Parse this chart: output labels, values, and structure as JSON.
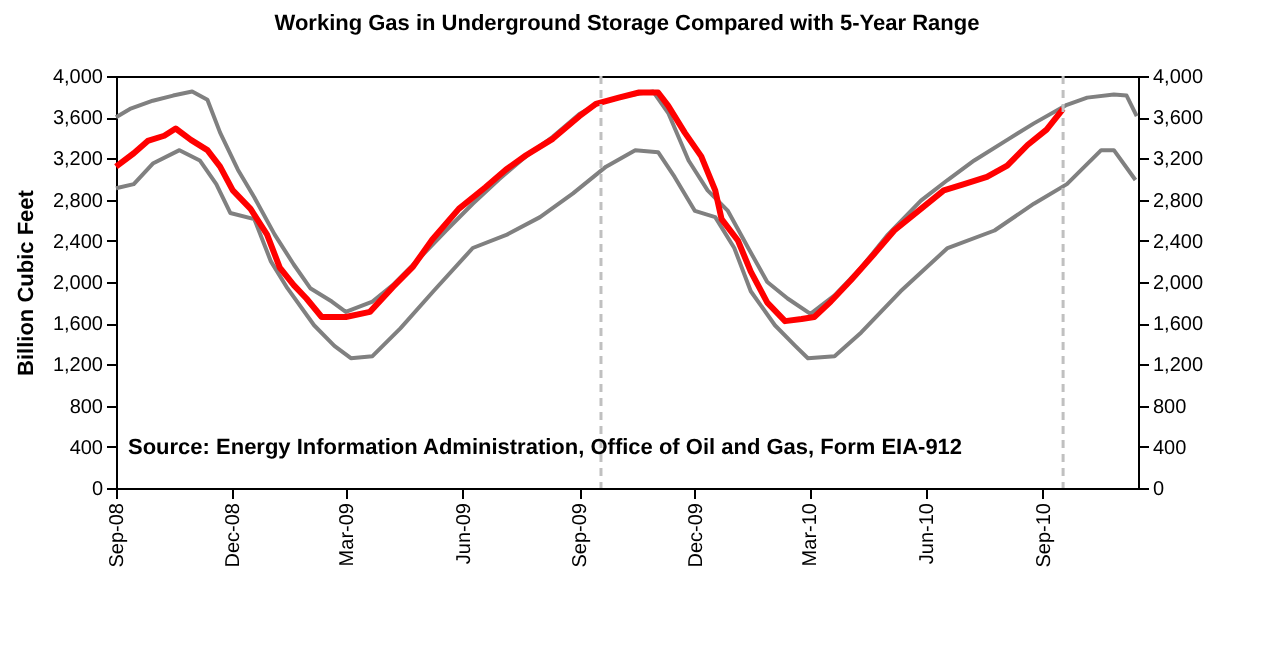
{
  "chart_data": {
    "type": "line",
    "title": "Working Gas in Underground Storage Compared with 5-Year Range",
    "ylabel": "Billion Cubic Feet",
    "annotations": [
      "Source:  Energy Information Administration, Office of Oil and Gas, Form EIA-912"
    ],
    "xlim": [
      "2008-09-01",
      "2010-11-15"
    ],
    "xticks": [
      {
        "value": "2008-09-01",
        "label": "Sep-08"
      },
      {
        "value": "2008-12-01",
        "label": "Dec-08"
      },
      {
        "value": "2009-03-01",
        "label": "Mar-09"
      },
      {
        "value": "2009-06-01",
        "label": "Jun-09"
      },
      {
        "value": "2009-09-01",
        "label": "Sep-09"
      },
      {
        "value": "2009-12-01",
        "label": "Dec-09"
      },
      {
        "value": "2010-03-01",
        "label": "Mar-10"
      },
      {
        "value": "2010-06-01",
        "label": "Jun-10"
      },
      {
        "value": "2010-09-01",
        "label": "Sep-10"
      }
    ],
    "ylim": [
      0,
      4000
    ],
    "yticks": [
      0,
      400,
      800,
      {
        "value": 1200,
        "label": "1,200"
      },
      {
        "value": 1600,
        "label": "1,600"
      },
      {
        "value": 2000,
        "label": "2,000"
      },
      {
        "value": 2400,
        "label": "2,400"
      },
      {
        "value": 2800,
        "label": "2,800"
      },
      {
        "value": 3200,
        "label": "3,200"
      },
      {
        "value": 3600,
        "label": "3,600"
      },
      {
        "value": 4000,
        "label": "4,000"
      }
    ],
    "y2lim": [
      0,
      4000
    ],
    "y2ticks": [
      0,
      400,
      800,
      {
        "value": 1200,
        "label": "1,200"
      },
      {
        "value": 1600,
        "label": "1,600"
      },
      {
        "value": 2000,
        "label": "2,000"
      },
      {
        "value": 2400,
        "label": "2,400"
      },
      {
        "value": 2800,
        "label": "2,800"
      },
      {
        "value": 3200,
        "label": "3,200"
      },
      {
        "value": 3600,
        "label": "3,600"
      },
      {
        "value": 4000,
        "label": "4,000"
      }
    ],
    "grid": false,
    "legend": false,
    "marker": "none",
    "line_style": "solid",
    "ref_lines": [
      {
        "axis": "x",
        "value": "2009-09-18",
        "color": "#c0c0c0",
        "line_style": "dashed"
      },
      {
        "axis": "x",
        "value": "2010-09-17",
        "color": "#c0c0c0",
        "line_style": "dashed"
      }
    ],
    "series": [
      {
        "color": "#808080",
        "x": [
          "2008-09-01",
          "2008-09-12",
          "2008-09-30",
          "2008-10-16",
          "2008-10-31",
          "2008-11-12",
          "2008-11-22",
          "2008-12-06",
          "2008-12-19",
          "2009-01-04",
          "2009-01-19",
          "2009-02-01",
          "2009-02-18",
          "2009-03-01",
          "2009-03-22",
          "2009-04-07",
          "2009-04-28",
          "2009-05-19",
          "2009-06-09",
          "2009-06-30",
          "2009-07-21",
          "2009-08-11",
          "2009-09-01",
          "2009-09-17",
          "2009-10-08",
          "2009-10-29",
          "2009-11-10",
          "2009-11-26",
          "2009-12-11",
          "2009-12-27",
          "2010-01-12",
          "2010-01-27",
          "2010-02-12",
          "2010-03-02",
          "2010-03-21",
          "2010-04-11",
          "2010-05-02",
          "2010-05-28",
          "2010-06-18",
          "2010-07-09",
          "2010-08-04",
          "2010-08-25",
          "2010-09-20",
          "2010-10-06",
          "2010-10-27",
          "2010-11-06",
          "2010-11-14"
        ],
        "values": [
          3600,
          3680,
          3760,
          3810,
          3850,
          3770,
          3450,
          3090,
          2820,
          2460,
          2170,
          1940,
          1810,
          1710,
          1810,
          1970,
          2230,
          2500,
          2760,
          3000,
          3220,
          3410,
          3630,
          3740,
          3810,
          3850,
          3640,
          3180,
          2890,
          2690,
          2330,
          2000,
          1840,
          1690,
          1870,
          2140,
          2460,
          2790,
          2990,
          3180,
          3380,
          3540,
          3720,
          3790,
          3820,
          3810,
          3610
        ]
      },
      {
        "color": "#808080",
        "x": [
          "2008-09-01",
          "2008-09-15",
          "2008-09-30",
          "2008-10-21",
          "2008-11-06",
          "2008-11-19",
          "2008-11-30",
          "2008-12-19",
          "2009-01-01",
          "2009-01-14",
          "2009-02-04",
          "2009-02-20",
          "2009-03-05",
          "2009-03-22",
          "2009-04-13",
          "2009-05-09",
          "2009-06-09",
          "2009-07-06",
          "2009-08-01",
          "2009-08-27",
          "2009-09-22",
          "2009-10-15",
          "2009-11-02",
          "2009-11-15",
          "2009-12-01",
          "2009-12-17",
          "2010-01-01",
          "2010-01-14",
          "2010-02-02",
          "2010-02-18",
          "2010-02-28",
          "2010-03-21",
          "2010-04-11",
          "2010-05-12",
          "2010-06-18",
          "2010-07-25",
          "2010-08-25",
          "2010-09-20",
          "2010-10-17",
          "2010-10-27",
          "2010-11-13"
        ],
        "values": [
          2910,
          2950,
          3150,
          3280,
          3180,
          2950,
          2670,
          2610,
          2200,
          1940,
          1580,
          1380,
          1260,
          1280,
          1550,
          1910,
          2330,
          2460,
          2630,
          2860,
          3120,
          3280,
          3260,
          3020,
          2690,
          2630,
          2330,
          1910,
          1580,
          1380,
          1260,
          1280,
          1510,
          1910,
          2330,
          2500,
          2760,
          2950,
          3280,
          3280,
          2990
        ]
      },
      {
        "color": "#ff0000",
        "x": [
          "2008-09-01",
          "2008-09-15",
          "2008-09-26",
          "2008-10-09",
          "2008-10-18",
          "2008-10-30",
          "2008-11-12",
          "2008-11-22",
          "2008-12-02",
          "2008-12-16",
          "2008-12-29",
          "2009-01-08",
          "2009-01-19",
          "2009-01-29",
          "2009-02-10",
          "2009-03-01",
          "2009-03-20",
          "2009-04-07",
          "2009-04-23",
          "2009-05-08",
          "2009-05-29",
          "2009-06-19",
          "2009-07-05",
          "2009-07-21",
          "2009-08-11",
          "2009-09-01",
          "2009-09-14",
          "2009-10-02",
          "2009-10-18",
          "2009-11-02",
          "2009-11-10",
          "2009-11-23",
          "2009-12-06",
          "2009-12-17",
          "2009-12-22",
          "2010-01-04",
          "2010-01-14",
          "2010-01-27",
          "2010-02-10",
          "2010-02-23",
          "2010-03-05",
          "2010-03-18",
          "2010-04-03",
          "2010-04-21",
          "2010-05-07",
          "2010-05-28",
          "2010-06-15",
          "2010-07-01",
          "2010-07-19",
          "2010-08-04",
          "2010-08-20",
          "2010-09-04",
          "2010-09-17"
        ],
        "values": [
          3120,
          3250,
          3370,
          3420,
          3490,
          3380,
          3280,
          3120,
          2890,
          2710,
          2460,
          2140,
          1970,
          1840,
          1660,
          1660,
          1710,
          1950,
          2150,
          2410,
          2710,
          2920,
          3090,
          3230,
          3390,
          3610,
          3730,
          3790,
          3840,
          3840,
          3710,
          3450,
          3220,
          2890,
          2610,
          2400,
          2100,
          1800,
          1620,
          1640,
          1660,
          1810,
          2020,
          2270,
          2500,
          2710,
          2890,
          2950,
          3020,
          3130,
          3330,
          3480,
          3680
        ]
      }
    ]
  }
}
